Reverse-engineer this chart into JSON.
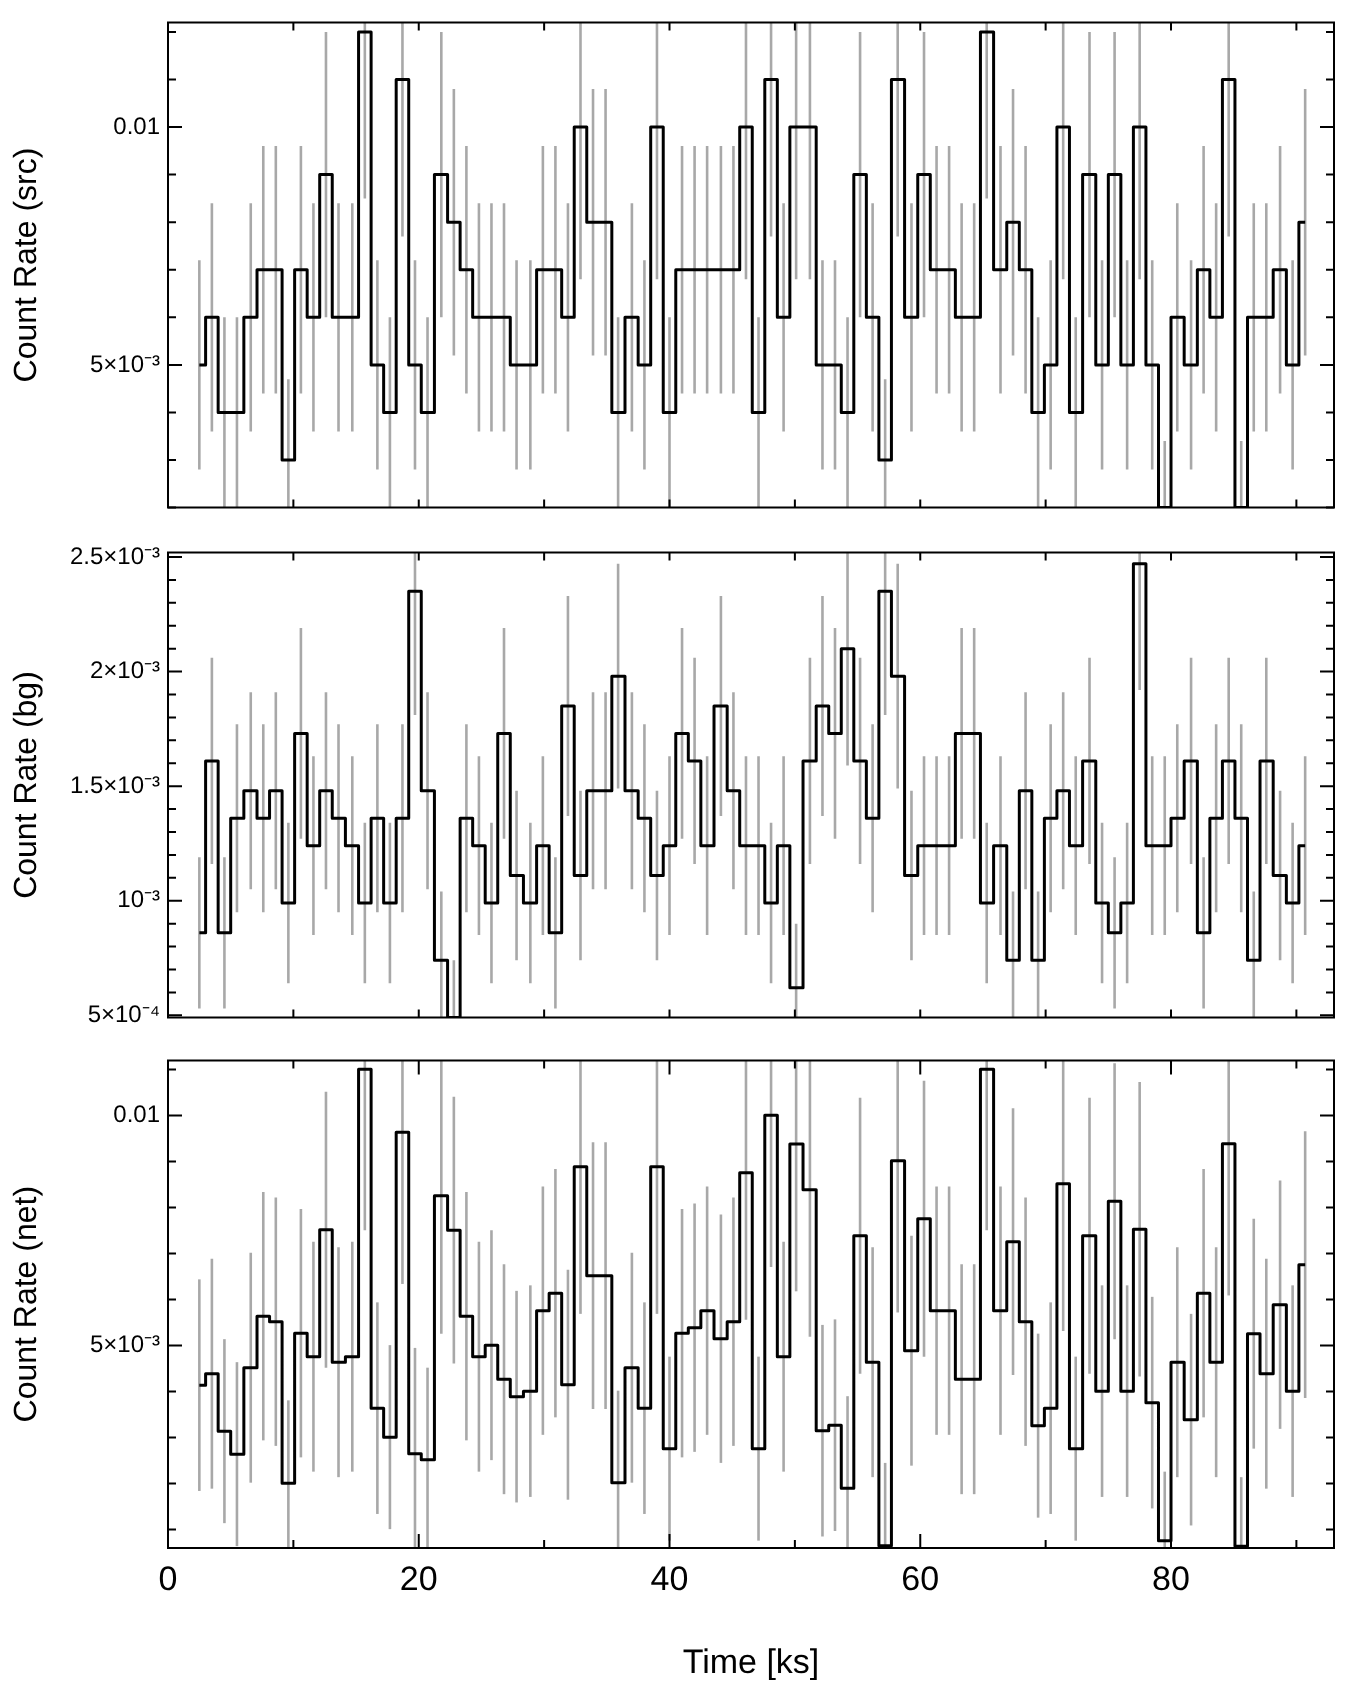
{
  "chart_data": [
    {
      "type": "step",
      "ylabel": "Count Rate (src)",
      "color": "#000000",
      "tick_labels": "y",
      "x": [
        2.5,
        3.5,
        4.5,
        5.5,
        6.6,
        7.6,
        8.6,
        9.6,
        10.6,
        11.6,
        12.6,
        13.6,
        14.7,
        15.7,
        16.7,
        17.7,
        18.7,
        19.7,
        20.7,
        21.8,
        22.8,
        23.8,
        24.8,
        25.8,
        26.8,
        27.8,
        28.9,
        29.9,
        30.9,
        31.9,
        32.9,
        33.9,
        34.9,
        35.9,
        37.0,
        38.0,
        39.0,
        40.0,
        41.0,
        42.0,
        43.0,
        44.1,
        45.1,
        46.1,
        47.1,
        48.1,
        49.1,
        50.1,
        51.2,
        52.2,
        53.2,
        54.2,
        55.2,
        56.2,
        57.2,
        58.2,
        59.3,
        60.3,
        61.3,
        62.3,
        63.3,
        64.3,
        65.3,
        66.4,
        67.4,
        68.4,
        69.4,
        70.4,
        71.4,
        72.4,
        73.5,
        74.5,
        75.5,
        76.5,
        77.5,
        78.5,
        79.5,
        80.5,
        81.6,
        82.6,
        83.6,
        84.6,
        85.6,
        86.6,
        87.6,
        88.7,
        89.7,
        90.7
      ],
      "values": [
        0.005,
        0.006,
        0.004,
        0.004,
        0.006,
        0.007,
        0.007,
        0.003,
        0.007,
        0.006,
        0.009,
        0.006,
        0.006,
        0.012,
        0.005,
        0.004,
        0.011,
        0.005,
        0.004,
        0.009,
        0.008,
        0.007,
        0.006,
        0.006,
        0.006,
        0.005,
        0.005,
        0.007,
        0.007,
        0.006,
        0.01,
        0.008,
        0.008,
        0.004,
        0.006,
        0.005,
        0.01,
        0.004,
        0.007,
        0.007,
        0.007,
        0.007,
        0.007,
        0.01,
        0.004,
        0.011,
        0.006,
        0.01,
        0.01,
        0.005,
        0.005,
        0.004,
        0.009,
        0.006,
        0.003,
        0.011,
        0.006,
        0.009,
        0.007,
        0.007,
        0.006,
        0.006,
        0.012,
        0.007,
        0.008,
        0.007,
        0.004,
        0.005,
        0.01,
        0.004,
        0.009,
        0.005,
        0.009,
        0.005,
        0.01,
        0.005,
        0.002,
        0.006,
        0.005,
        0.007,
        0.006,
        0.011,
        0.002,
        0.006,
        0.006,
        0.007,
        0.005,
        0.008
      ],
      "errors": [
        0.0022,
        0.0024,
        0.002,
        0.002,
        0.0024,
        0.0026,
        0.0026,
        [
          0.002,
          0.0047
        ],
        0.0026,
        0.0024,
        0.003,
        0.0024,
        0.0024,
        [
          0.0085,
          0.0122
        ],
        0.0022,
        0.002,
        [
          0.0077,
          0.0122
        ],
        0.0022,
        0.002,
        0.003,
        0.0028,
        0.0026,
        0.0024,
        0.0024,
        0.0024,
        0.0022,
        0.0022,
        0.0026,
        0.0026,
        0.0024,
        [
          0.0068,
          0.0122
        ],
        0.0028,
        0.0028,
        0.002,
        0.0024,
        0.0022,
        [
          0.0068,
          0.0122
        ],
        0.002,
        0.0026,
        0.0026,
        0.0026,
        0.0026,
        0.0026,
        [
          0.0068,
          0.0122
        ],
        0.002,
        [
          0.0077,
          0.0122
        ],
        0.0024,
        [
          0.0068,
          0.0122
        ],
        [
          0.0068,
          0.0122
        ],
        0.0022,
        0.0022,
        0.002,
        0.003,
        0.0024,
        [
          0.002,
          0.0047
        ],
        [
          0.0077,
          0.0122
        ],
        0.0024,
        0.003,
        0.0026,
        0.0026,
        0.0024,
        0.0024,
        [
          0.0085,
          0.0122
        ],
        0.0026,
        0.0028,
        0.0026,
        0.002,
        0.0022,
        [
          0.0068,
          0.0122
        ],
        0.002,
        0.003,
        0.0022,
        0.003,
        0.0022,
        [
          0.0068,
          0.0122
        ],
        0.0022,
        [
          0.002,
          0.0034
        ],
        0.0024,
        0.0022,
        0.0026,
        0.0024,
        [
          0.0077,
          0.0122
        ],
        [
          0.002,
          0.0034
        ],
        0.0024,
        0.0024,
        0.0026,
        0.0022,
        0.0028
      ],
      "xlim": [
        0,
        93
      ],
      "xticks": [
        {
          "value": 0,
          "label": null
        },
        {
          "value": 10,
          "label": null
        },
        {
          "value": 20,
          "label": null
        },
        {
          "value": 30,
          "label": null
        },
        {
          "value": 40,
          "label": null
        },
        {
          "value": 50,
          "label": null
        },
        {
          "value": 60,
          "label": null
        },
        {
          "value": 70,
          "label": null
        },
        {
          "value": 80,
          "label": null
        },
        {
          "value": 90,
          "label": null
        }
      ],
      "ylim": [
        0.002,
        0.0122
      ],
      "yticks": [
        {
          "value": 0.002,
          "label": null
        },
        {
          "value": 0.003,
          "label": null
        },
        {
          "value": 0.004,
          "label": null
        },
        {
          "value": 0.005,
          "label": "5×10⁻³"
        },
        {
          "value": 0.006,
          "label": null
        },
        {
          "value": 0.007,
          "label": null
        },
        {
          "value": 0.008,
          "label": null
        },
        {
          "value": 0.009,
          "label": null
        },
        {
          "value": 0.01,
          "label": "0.01"
        },
        {
          "value": 0.011,
          "label": null
        },
        {
          "value": 0.012,
          "label": null
        }
      ]
    },
    {
      "type": "step",
      "ylabel": "Count Rate (bg)",
      "color": "#000000",
      "tick_labels": "y",
      "x": [
        2.5,
        3.5,
        4.5,
        5.5,
        6.6,
        7.6,
        8.6,
        9.6,
        10.6,
        11.6,
        12.6,
        13.6,
        14.7,
        15.7,
        16.7,
        17.7,
        18.7,
        19.7,
        20.7,
        21.8,
        22.8,
        23.8,
        24.8,
        25.8,
        26.8,
        27.8,
        28.9,
        29.9,
        30.9,
        31.9,
        32.9,
        33.9,
        34.9,
        35.9,
        37.0,
        38.0,
        39.0,
        40.0,
        41.0,
        42.0,
        43.0,
        44.1,
        45.1,
        46.1,
        47.1,
        48.1,
        49.1,
        50.1,
        51.2,
        52.2,
        53.2,
        54.2,
        55.2,
        56.2,
        57.2,
        58.2,
        59.3,
        60.3,
        61.3,
        62.3,
        63.3,
        64.3,
        65.3,
        66.4,
        67.4,
        68.4,
        69.4,
        70.4,
        71.4,
        72.4,
        73.5,
        74.5,
        75.5,
        76.5,
        77.5,
        78.5,
        79.5,
        80.5,
        81.6,
        82.6,
        83.6,
        84.6,
        85.6,
        86.6,
        87.6,
        88.7,
        89.7,
        90.7
      ],
      "values": [
        0.00086,
        0.00161,
        0.00086,
        0.00136,
        0.00148,
        0.00136,
        0.00148,
        0.00099,
        0.00173,
        0.00124,
        0.00148,
        0.00136,
        0.00124,
        0.00099,
        0.00136,
        0.00099,
        0.00136,
        0.00235,
        0.00148,
        0.00074,
        0.00049,
        0.00136,
        0.00124,
        0.00099,
        0.00173,
        0.00111,
        0.00099,
        0.00124,
        0.00086,
        0.00185,
        0.00111,
        0.00148,
        0.00148,
        0.00198,
        0.00148,
        0.00136,
        0.00111,
        0.00124,
        0.00173,
        0.00161,
        0.00124,
        0.00185,
        0.00148,
        0.00124,
        0.00124,
        0.00099,
        0.00124,
        0.00062,
        0.00161,
        0.00185,
        0.00173,
        0.0021,
        0.00161,
        0.00136,
        0.00235,
        0.00198,
        0.00111,
        0.00124,
        0.00124,
        0.00124,
        0.00173,
        0.00173,
        0.00099,
        0.00124,
        0.00074,
        0.00148,
        0.00074,
        0.00136,
        0.00148,
        0.00124,
        0.00161,
        0.00099,
        0.00086,
        0.00099,
        0.00247,
        0.00124,
        0.00124,
        0.00136,
        0.00161,
        0.00086,
        0.00136,
        0.00161,
        0.00136,
        0.00074,
        0.00161,
        0.00111,
        0.00099,
        0.00124
      ],
      "errors": [
        0.00033,
        0.00045,
        0.00033,
        0.00041,
        0.00043,
        0.00041,
        0.00043,
        0.00035,
        0.00046,
        0.00039,
        0.00043,
        0.00041,
        0.00039,
        0.00035,
        0.00041,
        0.00035,
        0.00041,
        [
          0.00181,
          0.00252
        ],
        0.00043,
        [
          0.00049,
          0.00104
        ],
        [
          0.00049,
          0.00074
        ],
        0.00041,
        0.00039,
        0.00035,
        0.00046,
        0.00037,
        0.00035,
        0.00039,
        0.00033,
        0.00048,
        0.00037,
        0.00043,
        0.00043,
        0.00049,
        0.00043,
        0.00041,
        0.00037,
        0.00039,
        0.00046,
        0.00045,
        0.00039,
        0.00048,
        0.00043,
        0.00039,
        0.00039,
        0.00035,
        0.00039,
        [
          0.00049,
          0.0009
        ],
        0.00045,
        0.00048,
        0.00046,
        [
          0.00159,
          0.00252
        ],
        0.00045,
        0.00041,
        [
          0.00181,
          0.00252
        ],
        0.00049,
        0.00037,
        0.00039,
        0.00039,
        0.00039,
        0.00046,
        0.00046,
        0.00035,
        0.00039,
        [
          0.00049,
          0.00104
        ],
        0.00043,
        [
          0.00049,
          0.00104
        ],
        0.00041,
        0.00043,
        0.00039,
        0.00045,
        0.00035,
        0.00033,
        0.00035,
        [
          0.00192,
          0.00252
        ],
        0.00039,
        0.00039,
        0.00041,
        0.00045,
        0.00033,
        0.00041,
        0.00045,
        0.00041,
        [
          0.00049,
          0.00104
        ],
        0.00045,
        0.00037,
        0.00035,
        0.00039
      ],
      "xlim": [
        0,
        93
      ],
      "xticks": [
        {
          "value": 0,
          "label": null
        },
        {
          "value": 10,
          "label": null
        },
        {
          "value": 20,
          "label": null
        },
        {
          "value": 30,
          "label": null
        },
        {
          "value": 40,
          "label": null
        },
        {
          "value": 50,
          "label": null
        },
        {
          "value": 60,
          "label": null
        },
        {
          "value": 70,
          "label": null
        },
        {
          "value": 80,
          "label": null
        },
        {
          "value": 90,
          "label": null
        }
      ],
      "ylim": [
        0.00049,
        0.00252
      ],
      "yticks": [
        {
          "value": 0.0005,
          "label": "5×10⁻⁴"
        },
        {
          "value": 0.0006,
          "label": null
        },
        {
          "value": 0.0007,
          "label": null
        },
        {
          "value": 0.0008,
          "label": null
        },
        {
          "value": 0.0009,
          "label": null
        },
        {
          "value": 0.001,
          "label": "10⁻³"
        },
        {
          "value": 0.0011,
          "label": null
        },
        {
          "value": 0.0012,
          "label": null
        },
        {
          "value": 0.0013,
          "label": null
        },
        {
          "value": 0.0014,
          "label": null
        },
        {
          "value": 0.0015,
          "label": "1.5×10⁻³"
        },
        {
          "value": 0.0016,
          "label": null
        },
        {
          "value": 0.0017,
          "label": null
        },
        {
          "value": 0.0018,
          "label": null
        },
        {
          "value": 0.0019,
          "label": null
        },
        {
          "value": 0.002,
          "label": "2×10⁻³"
        },
        {
          "value": 0.0021,
          "label": null
        },
        {
          "value": 0.0022,
          "label": null
        },
        {
          "value": 0.0023,
          "label": null
        },
        {
          "value": 0.0024,
          "label": null
        },
        {
          "value": 0.0025,
          "label": "2.5×10⁻³"
        }
      ]
    },
    {
      "type": "step",
      "ylabel": "Count Rate (net)",
      "xlabel": "Time [ks]",
      "color": "#000000",
      "x": [
        2.5,
        3.5,
        4.5,
        5.5,
        6.6,
        7.6,
        8.6,
        9.6,
        10.6,
        11.6,
        12.6,
        13.6,
        14.7,
        15.7,
        16.7,
        17.7,
        18.7,
        19.7,
        20.7,
        21.8,
        22.8,
        23.8,
        24.8,
        25.8,
        26.8,
        27.8,
        28.9,
        29.9,
        30.9,
        31.9,
        32.9,
        33.9,
        34.9,
        35.9,
        37.0,
        38.0,
        39.0,
        40.0,
        41.0,
        42.0,
        43.0,
        44.1,
        45.1,
        46.1,
        47.1,
        48.1,
        49.1,
        50.1,
        51.2,
        52.2,
        53.2,
        54.2,
        55.2,
        56.2,
        57.2,
        58.2,
        59.3,
        60.3,
        61.3,
        62.3,
        63.3,
        64.3,
        65.3,
        66.4,
        67.4,
        68.4,
        69.4,
        70.4,
        71.4,
        72.4,
        73.5,
        74.5,
        75.5,
        76.5,
        77.5,
        78.5,
        79.5,
        80.5,
        81.6,
        82.6,
        83.6,
        84.6,
        85.6,
        86.6,
        87.6,
        88.7,
        89.7,
        90.7
      ],
      "values": [
        0.00414,
        0.00439,
        0.00314,
        0.00264,
        0.00452,
        0.00564,
        0.00552,
        0.00201,
        0.00527,
        0.00476,
        0.00752,
        0.00464,
        0.00476,
        0.01101,
        0.00364,
        0.00301,
        0.00964,
        0.00265,
        0.00252,
        0.00826,
        0.00751,
        0.00564,
        0.00476,
        0.00501,
        0.00427,
        0.00389,
        0.00401,
        0.00576,
        0.00614,
        0.00415,
        0.00889,
        0.00652,
        0.00652,
        0.00202,
        0.00452,
        0.00364,
        0.00889,
        0.00276,
        0.00527,
        0.00539,
        0.00576,
        0.00515,
        0.00552,
        0.00876,
        0.00276,
        0.01001,
        0.00476,
        0.00938,
        0.00839,
        0.00315,
        0.00327,
        0.0019,
        0.00739,
        0.00464,
        0.00065,
        0.00902,
        0.00489,
        0.00776,
        0.00576,
        0.00576,
        0.00427,
        0.00427,
        0.01101,
        0.00576,
        0.00726,
        0.00552,
        0.00326,
        0.00364,
        0.00852,
        0.00276,
        0.00739,
        0.00401,
        0.00814,
        0.00401,
        0.00753,
        0.00376,
        0.00076,
        0.00464,
        0.00339,
        0.00614,
        0.00464,
        0.00939,
        0.00064,
        0.00526,
        0.00439,
        0.00589,
        0.00401,
        0.00676
      ],
      "errors": [
        0.0023,
        0.0025,
        0.002,
        0.002,
        0.0025,
        0.0027,
        0.0027,
        [
          0.0006,
          0.00381
        ],
        0.0027,
        0.0025,
        0.003,
        0.0025,
        0.0025,
        [
          0.00751,
          0.0112
        ],
        0.0023,
        0.002,
        [
          0.00634,
          0.0112
        ],
        [
          0.0006,
          0.00495
        ],
        [
          0.0006,
          0.00452
        ],
        [
          0.00526,
          0.0112
        ],
        0.0029,
        0.0027,
        0.0025,
        0.0025,
        0.0025,
        0.0023,
        0.0023,
        0.0027,
        0.0027,
        0.0025,
        [
          0.00569,
          0.0112
        ],
        0.0029,
        0.0029,
        [
          0.0006,
          0.00402
        ],
        0.0025,
        0.0023,
        [
          0.00569,
          0.0112
        ],
        0.002,
        0.0027,
        0.0027,
        0.0027,
        0.0027,
        0.0027,
        [
          0.00556,
          0.0112
        ],
        0.002,
        [
          0.00671,
          0.0112
        ],
        0.0025,
        [
          0.00618,
          0.0112
        ],
        [
          0.00519,
          0.0112
        ],
        0.0023,
        0.0023,
        [
          0.0006,
          0.0039
        ],
        0.003,
        0.0025,
        [
          0.0006,
          0.00245
        ],
        [
          0.00572,
          0.0112
        ],
        0.0025,
        0.003,
        0.0027,
        0.0027,
        0.0025,
        0.0025,
        [
          0.00751,
          0.0112
        ],
        0.0027,
        0.0029,
        0.0027,
        0.002,
        0.0023,
        [
          0.00532,
          0.0112
        ],
        0.002,
        0.003,
        0.0023,
        0.003,
        0.0023,
        0.0032,
        0.0023,
        [
          0.0006,
          0.00226
        ],
        0.0025,
        0.0023,
        0.0027,
        0.0025,
        [
          0.00609,
          0.0112
        ],
        [
          0.0006,
          0.00214
        ],
        0.0025,
        0.0025,
        0.0027,
        0.0023,
        0.0029
      ],
      "xlim": [
        0,
        93
      ],
      "xticks": [
        {
          "value": 0,
          "label": "0"
        },
        {
          "value": 10,
          "label": null
        },
        {
          "value": 20,
          "label": "20"
        },
        {
          "value": 30,
          "label": null
        },
        {
          "value": 40,
          "label": "40"
        },
        {
          "value": 50,
          "label": null
        },
        {
          "value": 60,
          "label": "60"
        },
        {
          "value": 70,
          "label": null
        },
        {
          "value": 80,
          "label": "80"
        },
        {
          "value": 90,
          "label": null
        }
      ],
      "ylim": [
        0.0006,
        0.0112
      ],
      "yticks": [
        {
          "value": 0.001,
          "label": null
        },
        {
          "value": 0.002,
          "label": null
        },
        {
          "value": 0.003,
          "label": null
        },
        {
          "value": 0.004,
          "label": null
        },
        {
          "value": 0.005,
          "label": "5×10⁻³"
        },
        {
          "value": 0.006,
          "label": null
        },
        {
          "value": 0.007,
          "label": null
        },
        {
          "value": 0.008,
          "label": null
        },
        {
          "value": 0.009,
          "label": null
        },
        {
          "value": 0.01,
          "label": "0.01"
        },
        {
          "value": 0.011,
          "label": null
        }
      ]
    }
  ]
}
